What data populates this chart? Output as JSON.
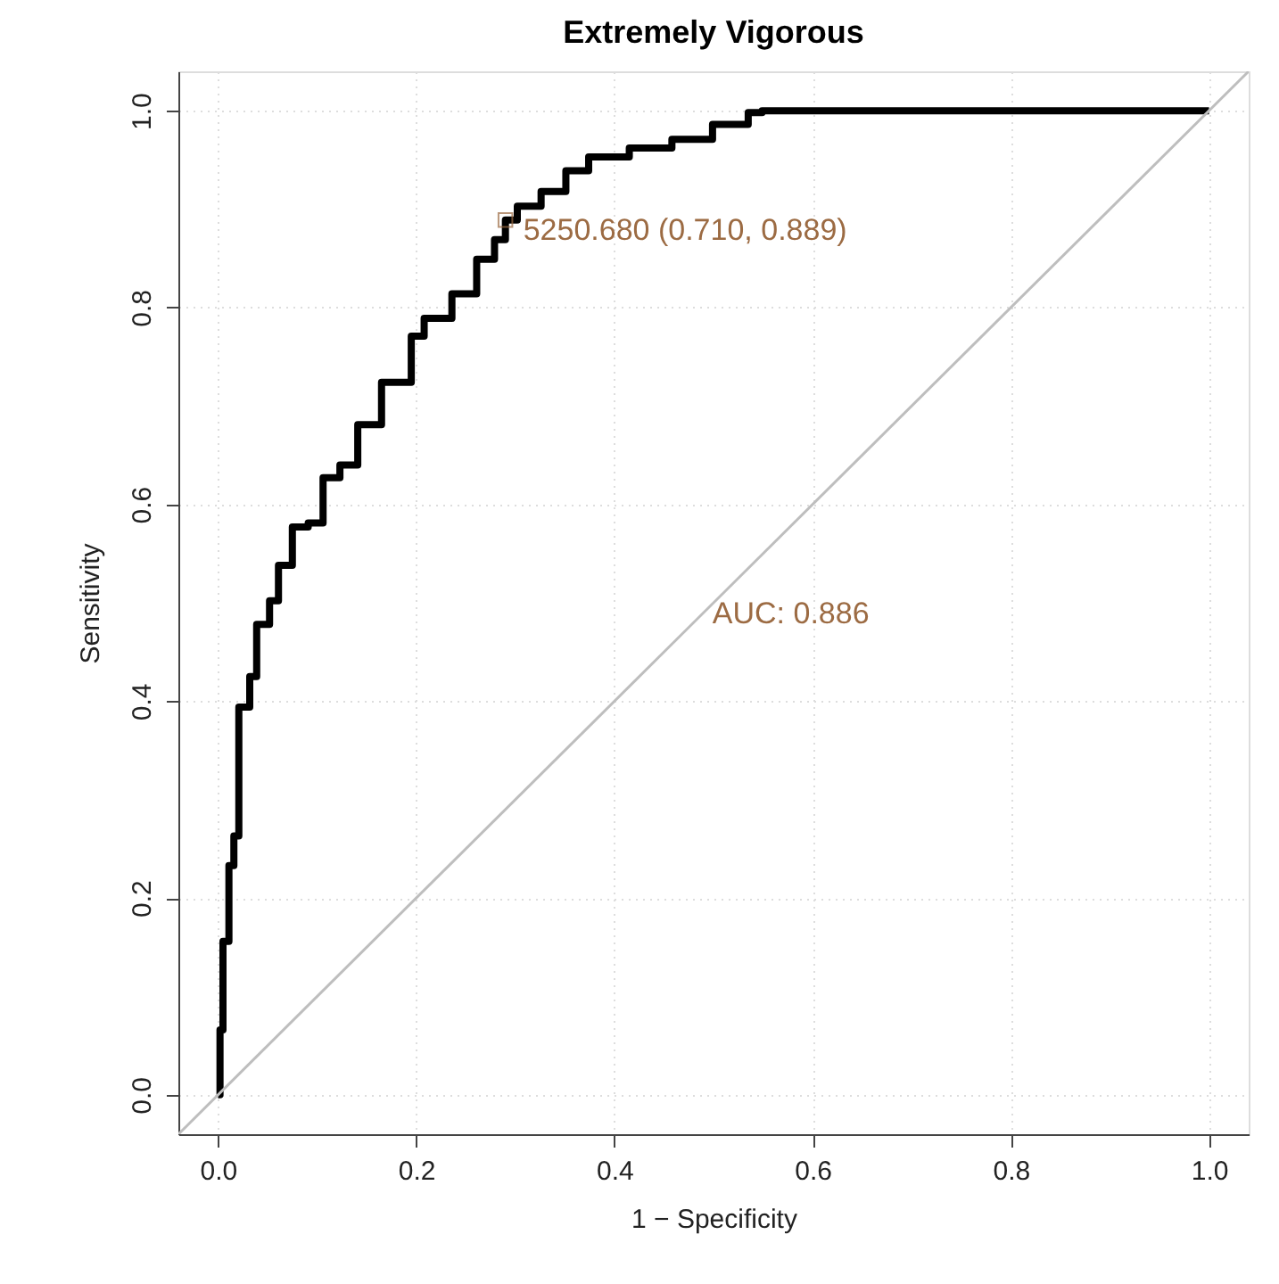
{
  "chart_data": {
    "type": "step",
    "title": "Extremely Vigorous",
    "xlabel": "1 − Specificity",
    "ylabel": "Sensitivity",
    "xlim": [
      -0.04,
      1.04
    ],
    "ylim": [
      -0.04,
      1.04
    ],
    "xticks": [
      {
        "value": 0,
        "label": "0.0"
      },
      {
        "value": 0.2,
        "label": "0.2"
      },
      {
        "value": 0.4,
        "label": "0.4"
      },
      {
        "value": 0.6,
        "label": "0.6"
      },
      {
        "value": 0.8,
        "label": "0.8"
      },
      {
        "value": 1,
        "label": "1.0"
      }
    ],
    "yticks": [
      {
        "value": 0,
        "label": "0.0"
      },
      {
        "value": 0.2,
        "label": "0.2"
      },
      {
        "value": 0.4,
        "label": "0.4"
      },
      {
        "value": 0.6,
        "label": "0.6"
      },
      {
        "value": 0.8,
        "label": "0.8"
      },
      {
        "value": 1,
        "label": "1.0"
      }
    ],
    "grid": true,
    "marker": "none",
    "line_style": "solid",
    "series": [
      {
        "color": "#000000",
        "x": [
          0,
          0.002,
          0.005,
          0.011,
          0.016,
          0.021,
          0.032,
          0.039,
          0.052,
          0.061,
          0.075,
          0.091,
          0.106,
          0.123,
          0.141,
          0.165,
          0.195,
          0.208,
          0.236,
          0.261,
          0.279,
          0.29,
          0.302,
          0.326,
          0.351,
          0.374,
          0.415,
          0.458,
          0.499,
          0.535,
          0.549,
          1
        ],
        "values": [
          0,
          0.066,
          0.156,
          0.233,
          0.263,
          0.394,
          0.425,
          0.478,
          0.502,
          0.538,
          0.577,
          0.581,
          0.627,
          0.64,
          0.681,
          0.724,
          0.771,
          0.789,
          0.814,
          0.849,
          0.869,
          0.889,
          0.903,
          0.918,
          0.939,
          0.953,
          0.962,
          0.971,
          0.986,
          0.998,
          1,
          1
        ]
      },
      {
        "type": "line",
        "color": "#bebebe",
        "x": [
          -0.04,
          1.04
        ],
        "values": [
          -0.04,
          1.04
        ]
      }
    ],
    "annotations": [
      {
        "text": "5250.680 (0.710, 0.889)",
        "x": 0.29,
        "y": 0.889
      },
      "AUC: 0.886"
    ]
  }
}
